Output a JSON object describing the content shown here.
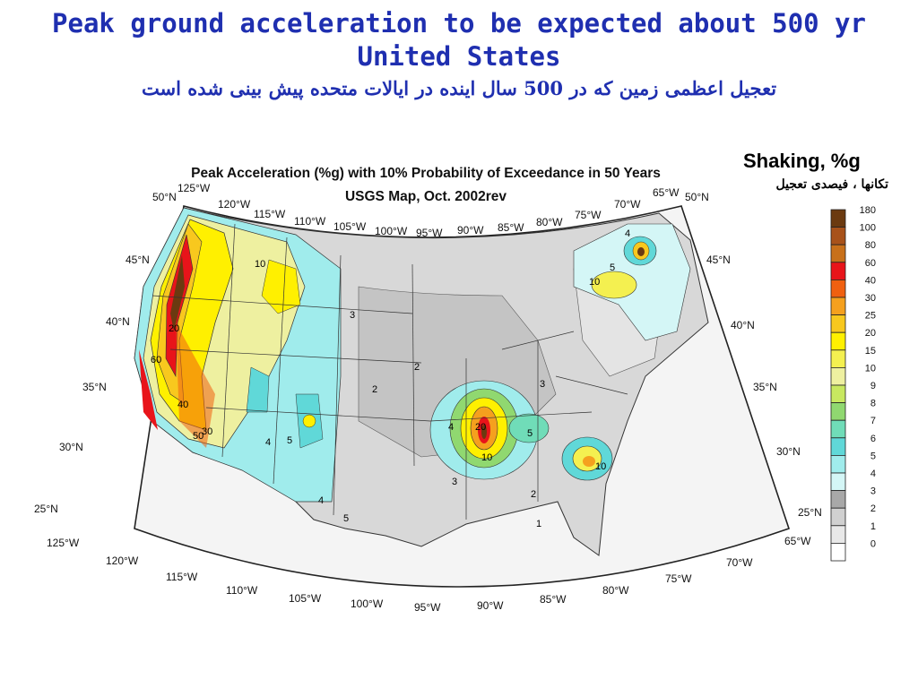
{
  "title": {
    "line1": "Peak ground acceleration to be expected about 500 yr",
    "line2": "United States",
    "persian": "تعجیل اعظمی زمین که در 500 سال اینده در ایالات متحده پیش بینی شده است"
  },
  "legend": {
    "title": "Shaking, %g",
    "subtitle": "تکانها ، فیصدی تعجیل",
    "bins": [
      {
        "label": "180",
        "color": "#6b3a10"
      },
      {
        "label": "100",
        "color": "#a8521a"
      },
      {
        "label": "80",
        "color": "#c8701a"
      },
      {
        "label": "60",
        "color": "#e8141a"
      },
      {
        "label": "40",
        "color": "#f06010"
      },
      {
        "label": "30",
        "color": "#f5a01e"
      },
      {
        "label": "25",
        "color": "#f8c81e"
      },
      {
        "label": "20",
        "color": "#fff000"
      },
      {
        "label": "15",
        "color": "#f4f050"
      },
      {
        "label": "10",
        "color": "#eef0a0"
      },
      {
        "label": "9",
        "color": "#c8e860"
      },
      {
        "label": "8",
        "color": "#90d870"
      },
      {
        "label": "7",
        "color": "#70dcb8"
      },
      {
        "label": "6",
        "color": "#60d8d8"
      },
      {
        "label": "5",
        "color": "#a0ecec"
      },
      {
        "label": "4",
        "color": "#d4f6f6"
      },
      {
        "label": "3",
        "color": "#a8a8a8"
      },
      {
        "label": "2",
        "color": "#d0d0d0"
      },
      {
        "label": "1",
        "color": "#e8e8e8"
      },
      {
        "label": "0",
        "color": "#ffffff"
      }
    ]
  },
  "map": {
    "heading": "Peak Acceleration (%g) with 10% Probability of Exceedance in 50 Years",
    "subheading": "USGS Map, Oct. 2002rev",
    "top_longitudes": [
      "125°W",
      "120°W",
      "115°W",
      "110°W",
      "105°W",
      "100°W",
      "95°W",
      "90°W",
      "85°W",
      "80°W",
      "75°W",
      "70°W",
      "65°W"
    ],
    "bottom_longitudes": [
      "125°W",
      "120°W",
      "115°W",
      "110°W",
      "105°W",
      "100°W",
      "95°W",
      "90°W",
      "85°W",
      "80°W",
      "75°W",
      "70°W",
      "65°W"
    ],
    "left_latitudes": [
      "50°N",
      "45°N",
      "40°N",
      "35°N",
      "30°N",
      "25°N"
    ],
    "right_latitudes": [
      "50°N",
      "45°N",
      "40°N",
      "35°N",
      "30°N",
      "25°N"
    ],
    "contour_labels": [
      "10",
      "20",
      "60",
      "40",
      "50",
      "30",
      "4",
      "5",
      "2",
      "3",
      "4",
      "5",
      "10",
      "20",
      "5",
      "10",
      "4",
      "2",
      "3",
      "1",
      "3",
      "2",
      "10",
      "5",
      "4"
    ]
  }
}
